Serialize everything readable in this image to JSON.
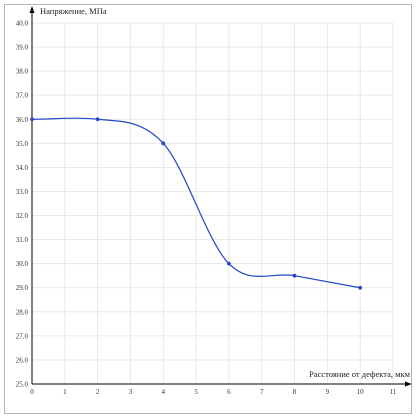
{
  "chart_data": {
    "type": "line",
    "title": "",
    "xlabel": "Расстояние от дефекта, мкм",
    "ylabel": "Напряжение, МПа",
    "x": [
      0,
      2,
      4,
      6,
      8,
      10
    ],
    "series": [
      {
        "values": [
          36.0,
          36.0,
          35.0,
          30.0,
          29.5,
          29.0
        ]
      }
    ],
    "xlim": [
      0,
      11
    ],
    "ylim": [
      25.0,
      40.0
    ],
    "x_ticks": [
      "0",
      "1",
      "2",
      "3",
      "4",
      "5",
      "6",
      "7",
      "8",
      "9",
      "10",
      "11"
    ],
    "y_ticks": [
      "25.0",
      "26.0",
      "27.0",
      "28.0",
      "29.0",
      "30.0",
      "31.0",
      "32.0",
      "33.0",
      "34.0",
      "35.0",
      "36.0",
      "37.0",
      "38.0",
      "39.0",
      "40.0"
    ],
    "grid": true,
    "smooth": true,
    "line_color": "#2347c8",
    "marker_color": "#2347c8",
    "grid_color": "#e3e3e3"
  }
}
